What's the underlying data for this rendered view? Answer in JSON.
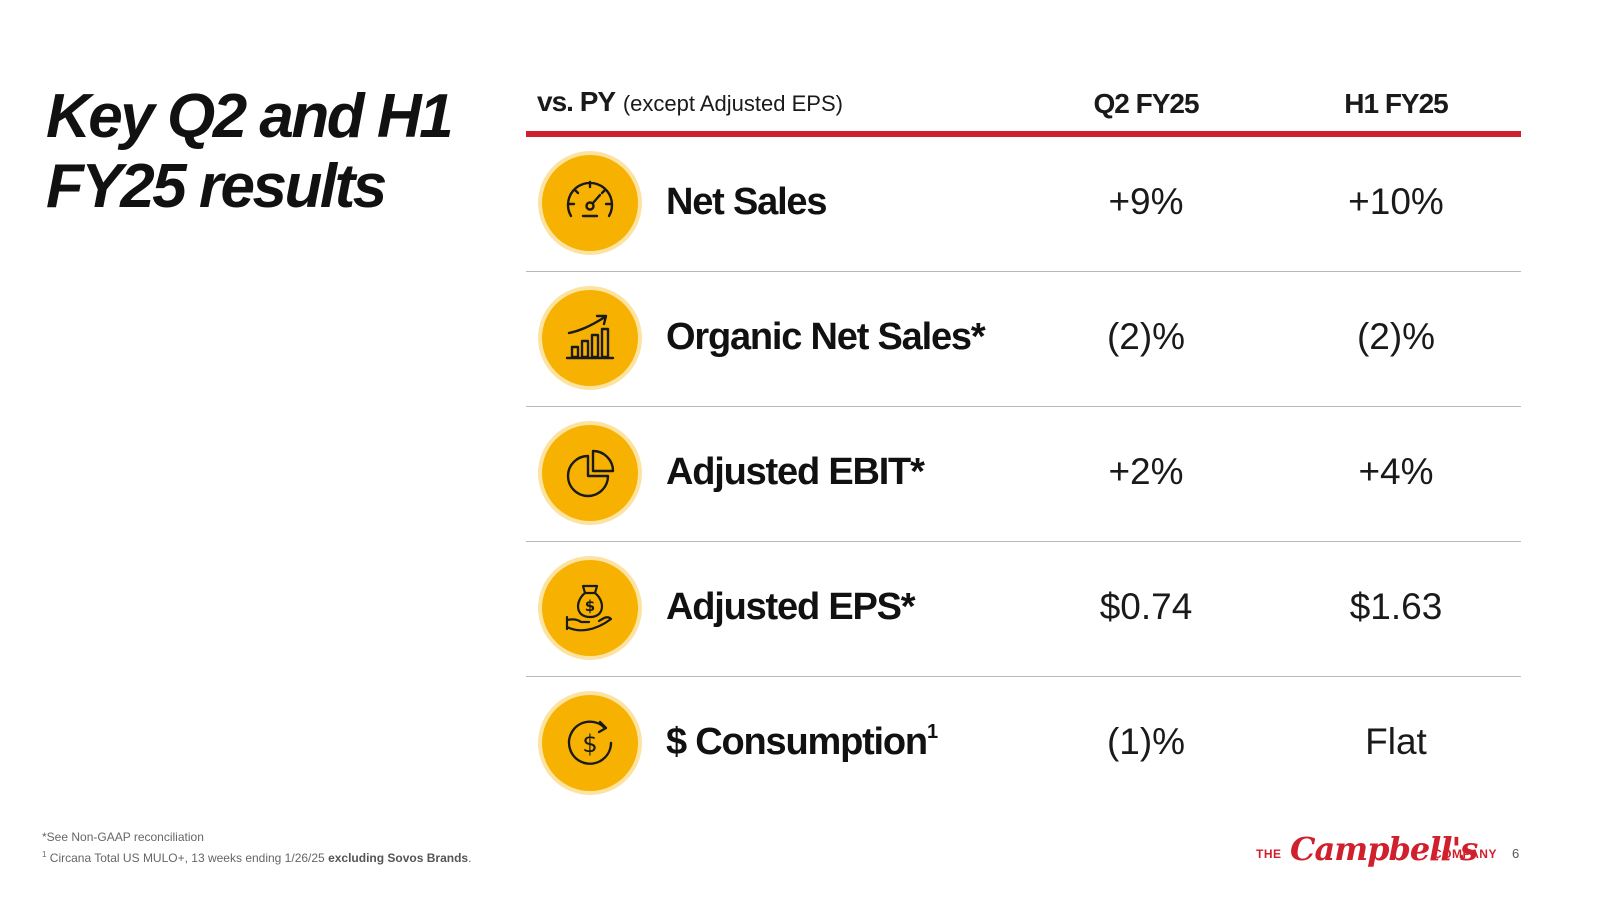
{
  "title_line1": "Key Q2 and H1",
  "title_line2": "FY25 results",
  "table": {
    "header_bold": "vs. PY",
    "header_sub": "(except Adjusted EPS)",
    "col1": "Q2 FY25",
    "col2": "H1 FY25",
    "rows": [
      {
        "icon": "speedometer-icon",
        "label": "Net Sales",
        "sup": "",
        "q2": "+9%",
        "h1": "+10%"
      },
      {
        "icon": "growth-chart-icon",
        "label": "Organic Net Sales*",
        "sup": "",
        "q2": "(2)%",
        "h1": "(2)%"
      },
      {
        "icon": "pie-chart-icon",
        "label": "Adjusted EBIT*",
        "sup": "",
        "q2": "+2%",
        "h1": "+4%"
      },
      {
        "icon": "money-bag-hand-icon",
        "label": "Adjusted EPS*",
        "sup": "",
        "q2": "$0.74",
        "h1": "$1.63"
      },
      {
        "icon": "dollar-cycle-icon",
        "label": "$ Consumption",
        "sup": "1",
        "q2": "(1)%",
        "h1": "Flat"
      }
    ]
  },
  "footnotes": {
    "note1": "*See Non-GAAP reconciliation",
    "note2_sup": "1",
    "note2_text": " Circana Total US MULO+, 13 weeks ending 1/26/25 ",
    "note2_bold": "excluding Sovos Brands",
    "note2_end": "."
  },
  "logo": {
    "the": "THE",
    "name": "Campbell's",
    "company": "COMPANY"
  },
  "page_number": "6",
  "colors": {
    "accent_red": "#d0202e",
    "icon_yellow": "#f7b100",
    "icon_ring": "#fce3a2"
  }
}
